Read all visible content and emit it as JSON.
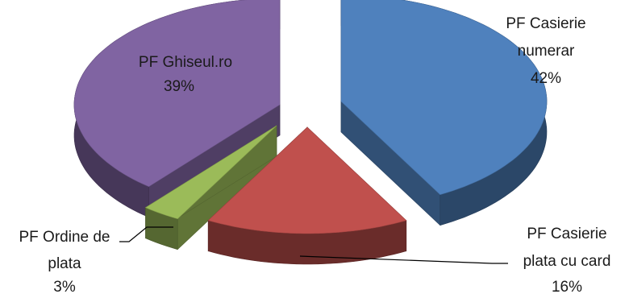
{
  "chart_data": {
    "type": "pie",
    "style": "3d-exploded",
    "slices": [
      {
        "label_lines": [
          "PF Casierie",
          "numerar"
        ],
        "pct_label": "42%",
        "value": 42,
        "color": "#4f81bd"
      },
      {
        "label_lines": [
          "PF Casierie",
          "plata cu card"
        ],
        "pct_label": "16%",
        "value": 16,
        "color": "#c0504d"
      },
      {
        "label_lines": [
          "PF Ordine de",
          "plata"
        ],
        "pct_label": "3%",
        "value": 3,
        "color": "#9bbb59"
      },
      {
        "label_lines": [
          "PF Ghiseul.ro"
        ],
        "pct_label": "39%",
        "value": 39,
        "color": "#8064a2"
      }
    ]
  }
}
